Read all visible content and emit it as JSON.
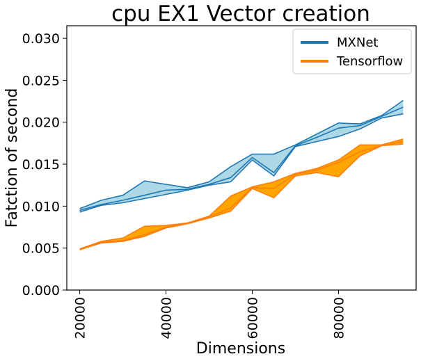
{
  "chart_data": {
    "type": "line",
    "title": "cpu EX1 Vector creation",
    "xlabel": "Dimensions",
    "ylabel": "Fatction of second",
    "xlim": [
      17000,
      98000
    ],
    "ylim": [
      0.0,
      0.0315
    ],
    "xticks": [
      20000,
      40000,
      60000,
      80000
    ],
    "xtick_labels": [
      "20000",
      "40000",
      "60000",
      "80000"
    ],
    "yticks": [
      0.0,
      0.005,
      0.01,
      0.015,
      0.02,
      0.025,
      0.03
    ],
    "ytick_labels": [
      "0.000",
      "0.005",
      "0.010",
      "0.015",
      "0.020",
      "0.025",
      "0.030"
    ],
    "grid": false,
    "legend_position": "top-right",
    "x": [
      20000,
      25000,
      30000,
      35000,
      40000,
      45000,
      50000,
      55000,
      60000,
      65000,
      70000,
      75000,
      80000,
      85000,
      90000,
      95000
    ],
    "series": [
      {
        "name": "MXNet",
        "color": "#1f77b4",
        "fill_color": "#add8e6",
        "upper": [
          0.0097,
          0.0107,
          0.0113,
          0.013,
          0.0126,
          0.0122,
          0.0129,
          0.0147,
          0.0162,
          0.0162,
          0.0173,
          0.0186,
          0.0199,
          0.0198,
          0.0208,
          0.0226
        ],
        "middle": [
          0.0095,
          0.0102,
          0.0107,
          0.0113,
          0.0119,
          0.012,
          0.0126,
          0.0134,
          0.0158,
          0.014,
          0.0172,
          0.0182,
          0.0193,
          0.0196,
          0.0207,
          0.0218
        ],
        "lower": [
          0.0093,
          0.0101,
          0.0104,
          0.0109,
          0.0114,
          0.0119,
          0.0125,
          0.0129,
          0.0155,
          0.0136,
          0.0171,
          0.0177,
          0.0183,
          0.0192,
          0.0205,
          0.021
        ]
      },
      {
        "name": "Tensorflow",
        "color": "#ff7f0e",
        "fill_color": "#ffa500",
        "upper": [
          0.0049,
          0.0058,
          0.0062,
          0.0076,
          0.0077,
          0.008,
          0.0088,
          0.0112,
          0.0123,
          0.0129,
          0.0139,
          0.0145,
          0.0155,
          0.0173,
          0.0173,
          0.018
        ],
        "middle": [
          0.0048,
          0.0057,
          0.0059,
          0.0066,
          0.0075,
          0.008,
          0.0087,
          0.0098,
          0.0122,
          0.0121,
          0.0138,
          0.0143,
          0.0152,
          0.0165,
          0.0172,
          0.0177
        ],
        "lower": [
          0.0048,
          0.0056,
          0.0058,
          0.0064,
          0.0074,
          0.0079,
          0.0086,
          0.0094,
          0.0121,
          0.011,
          0.0136,
          0.014,
          0.0135,
          0.016,
          0.0172,
          0.0174
        ]
      }
    ]
  }
}
